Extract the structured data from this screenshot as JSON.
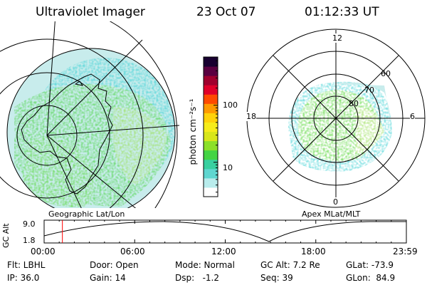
{
  "header": {
    "title": "Ultraviolet Imager",
    "date": "23 Oct 07",
    "time": "01:12:33 UT"
  },
  "left_map": {
    "caption": "Geographic Lat/Lon"
  },
  "right_map": {
    "caption": "Apex MLat/MLT",
    "mlt_labels": [
      "12",
      "18",
      "6",
      "0"
    ],
    "lat_labels": [
      "60",
      "70",
      "80"
    ]
  },
  "colorbar": {
    "label": "photon cm⁻²s⁻¹",
    "ticks": [
      "100",
      "10"
    ],
    "ticks_values": [
      100,
      10
    ],
    "range": [
      2.5,
      700
    ],
    "scale": "log",
    "colors": [
      "#ffffff",
      "#b8ecec",
      "#5fd6d0",
      "#38d0a0",
      "#44d444",
      "#8ce028",
      "#d8e61a",
      "#f6ec1a",
      "#ffd20a",
      "#ff9a00",
      "#ff4a00",
      "#e0002a",
      "#a0002e",
      "#5a0040",
      "#180030"
    ]
  },
  "altitude_plot": {
    "ylabel": "GC Alt",
    "yticks": [
      "9.0",
      "1.8"
    ],
    "ytick_values": [
      9.0,
      1.8
    ],
    "xticks": [
      "00:00",
      "06:00",
      "12:00",
      "18:00",
      "23:59"
    ],
    "xtick_values": [
      0,
      6,
      12,
      18,
      23.98
    ],
    "current_time_hours": 1.21,
    "line_color": "#ff0000"
  },
  "info": {
    "flt": "Flt: LBHL",
    "ip": "IP: 36.0",
    "door": "Door: Open",
    "gain": "Gain: 14",
    "mode": "Mode: Normal",
    "dsp": "Dsp:   -1.2",
    "gcalt": "GC Alt: 7.2 Re",
    "seq": "Seq: 39",
    "glat": "GLat: -73.9",
    "glon": "GLon:  84.9"
  },
  "colors": {
    "cyan": "#45d3d6",
    "green": "#5ad83c",
    "lightgreen": "#9be05a",
    "pale": "#c8ecec"
  }
}
